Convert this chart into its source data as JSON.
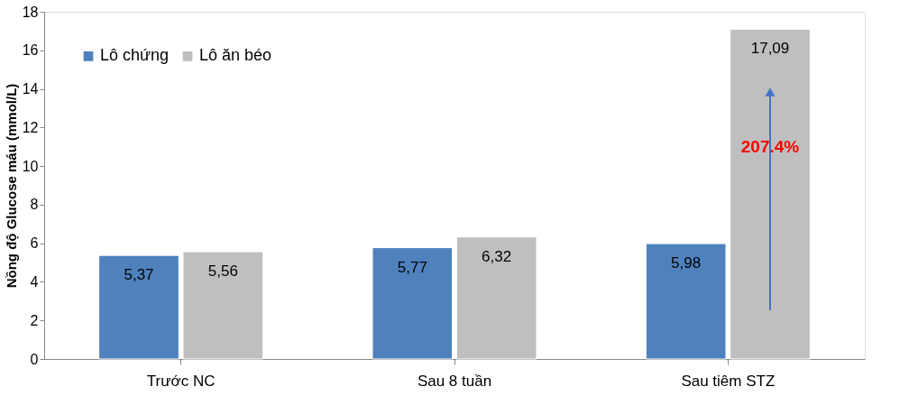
{
  "chart_data": {
    "type": "bar",
    "ylabel": "Nồng độ Glucose máu (mmol/L)",
    "categories": [
      "Trước NC",
      "Sau 8 tuần",
      "Sau tiêm STZ"
    ],
    "series": [
      {
        "name": "Lô chứng",
        "color": "#4f81bd",
        "values": [
          5.37,
          5.77,
          5.98
        ]
      },
      {
        "name": "Lô ăn béo",
        "color": "#bfbfbf",
        "values": [
          5.56,
          6.32,
          17.09
        ]
      }
    ],
    "value_labels": [
      [
        "5,37",
        "5,77",
        "5,98"
      ],
      [
        "5,56",
        "6,32",
        "17,09"
      ]
    ],
    "ylim": [
      0,
      18
    ],
    "yticks": [
      0,
      2,
      4,
      6,
      8,
      10,
      12,
      14,
      16,
      18
    ],
    "grid": false,
    "legend": "top left",
    "annotations": [
      {
        "text": "207.4%",
        "x": "Sau tiêm STZ",
        "y": 11
      }
    ]
  }
}
